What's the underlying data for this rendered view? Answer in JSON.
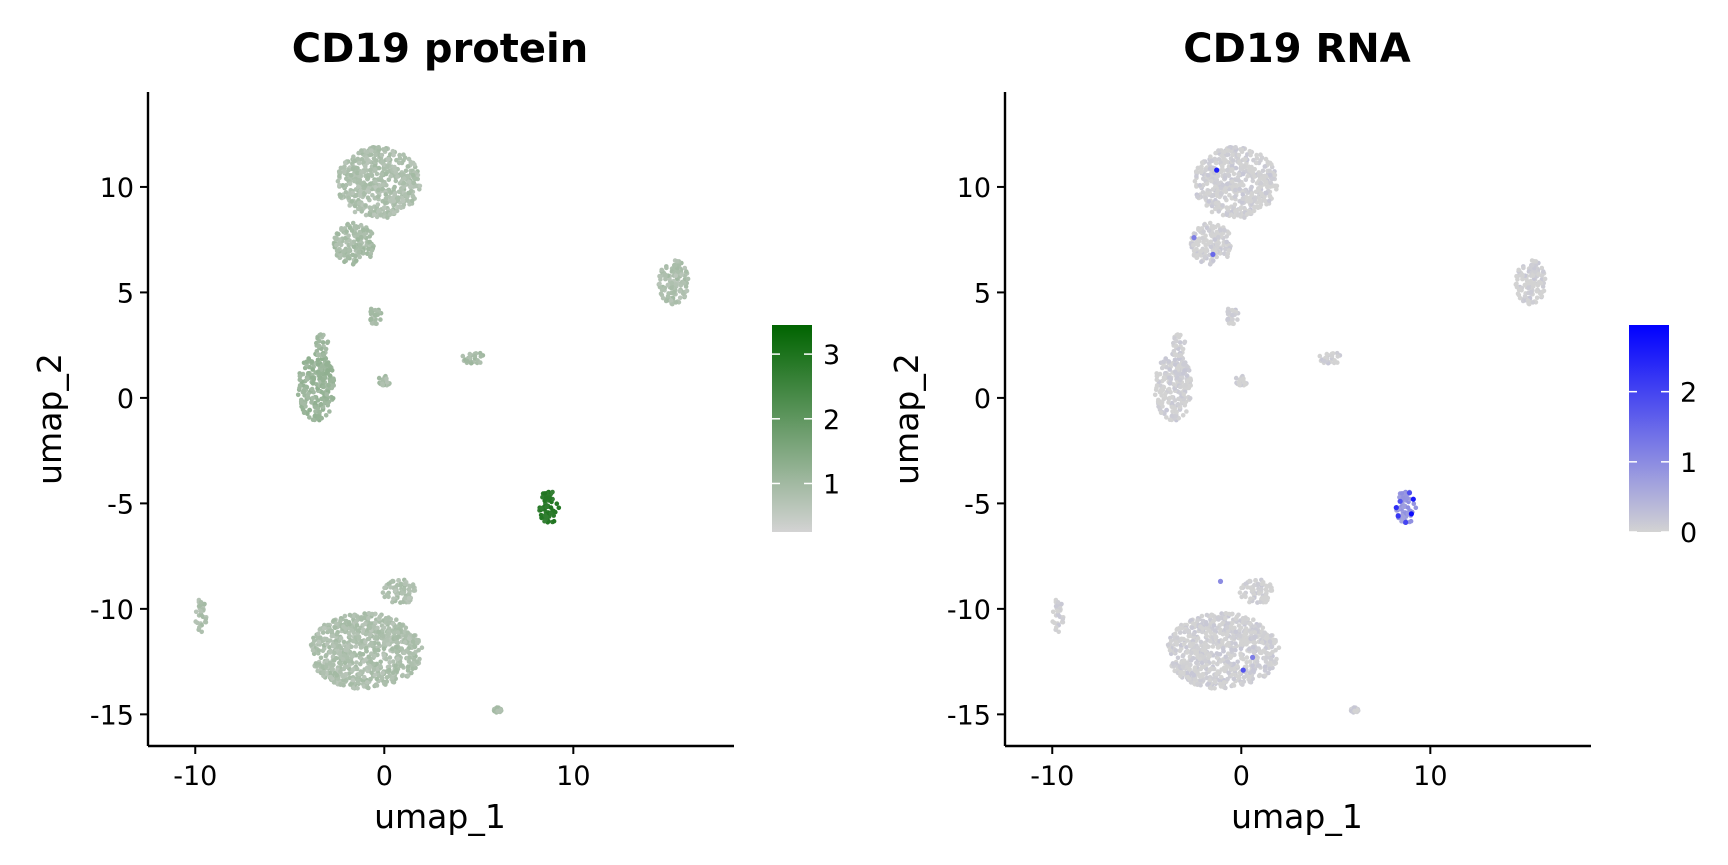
{
  "chart_data": [
    {
      "type": "scatter",
      "title": "CD19 protein",
      "xlabel": "umap_1",
      "ylabel": "umap_2",
      "xlim": [
        -12.5,
        18.5
      ],
      "ylim": [
        -16.5,
        14.5
      ],
      "xticks": [
        -10,
        0,
        10
      ],
      "xtick_labels": [
        "-10",
        "0",
        "10"
      ],
      "yticks": [
        10,
        5,
        0,
        -5,
        -10,
        -15
      ],
      "ytick_labels": [
        "10",
        "5",
        "0",
        "-5",
        "-10",
        "-15"
      ],
      "grid": false,
      "legend": "right",
      "colorbar": {
        "low_color": "#d3d3d3",
        "high_color": "#006400",
        "min": 0.25,
        "max": 3.45,
        "ticks": [
          1,
          2,
          3
        ],
        "tick_labels": [
          "1",
          "2",
          "3"
        ]
      },
      "clusters": [
        {
          "cx": -0.3,
          "cy": 10.2,
          "rx": 2.2,
          "ry": 1.7,
          "value": 0.8
        },
        {
          "cx": -1.6,
          "cy": 7.3,
          "rx": 1.1,
          "ry": 1.0,
          "value": 0.9
        },
        {
          "cx": -0.5,
          "cy": 3.9,
          "rx": 0.35,
          "ry": 0.45,
          "value": 0.9
        },
        {
          "cx": -3.6,
          "cy": 0.5,
          "rx": 1.0,
          "ry": 1.6,
          "value": 1.1
        },
        {
          "cx": -3.3,
          "cy": 2.5,
          "rx": 0.35,
          "ry": 0.6,
          "value": 1.0
        },
        {
          "cx": 0.0,
          "cy": 0.8,
          "rx": 0.35,
          "ry": 0.25,
          "value": 0.9
        },
        {
          "cx": 4.7,
          "cy": 1.9,
          "rx": 0.6,
          "ry": 0.3,
          "value": 0.9
        },
        {
          "cx": 15.3,
          "cy": 5.5,
          "rx": 0.8,
          "ry": 1.1,
          "value": 0.8
        },
        {
          "cx": 8.7,
          "cy": -5.2,
          "rx": 0.55,
          "ry": 0.85,
          "value": 2.8
        },
        {
          "cx": -1.0,
          "cy": -12.0,
          "rx": 3.0,
          "ry": 1.8,
          "value": 0.8
        },
        {
          "cx": 0.8,
          "cy": -9.2,
          "rx": 0.9,
          "ry": 0.6,
          "value": 0.8
        },
        {
          "cx": -9.7,
          "cy": -10.3,
          "rx": 0.3,
          "ry": 0.8,
          "value": 0.8
        },
        {
          "cx": 6.0,
          "cy": -14.8,
          "rx": 0.2,
          "ry": 0.15,
          "value": 0.8
        }
      ]
    },
    {
      "type": "scatter",
      "title": "CD19 RNA",
      "xlabel": "umap_1",
      "ylabel": "umap_2",
      "xlim": [
        -12.5,
        18.5
      ],
      "ylim": [
        -16.5,
        14.5
      ],
      "xticks": [
        -10,
        0,
        10
      ],
      "xtick_labels": [
        "-10",
        "0",
        "10"
      ],
      "yticks": [
        10,
        5,
        0,
        -5,
        -10,
        -15
      ],
      "ytick_labels": [
        "10",
        "5",
        "0",
        "-5",
        "-10",
        "-15"
      ],
      "grid": false,
      "legend": "right",
      "colorbar": {
        "low_color": "#d3d3d3",
        "high_color": "#0000ff",
        "min": 0,
        "max": 2.95,
        "ticks": [
          0,
          1,
          2
        ],
        "tick_labels": [
          "0",
          "1",
          "2"
        ]
      },
      "clusters": [
        {
          "cx": -0.3,
          "cy": 10.2,
          "rx": 2.2,
          "ry": 1.7,
          "value": 0
        },
        {
          "cx": -1.6,
          "cy": 7.3,
          "rx": 1.1,
          "ry": 1.0,
          "value": 0
        },
        {
          "cx": -0.5,
          "cy": 3.9,
          "rx": 0.35,
          "ry": 0.45,
          "value": 0
        },
        {
          "cx": -3.6,
          "cy": 0.5,
          "rx": 1.0,
          "ry": 1.6,
          "value": 0
        },
        {
          "cx": -3.3,
          "cy": 2.5,
          "rx": 0.35,
          "ry": 0.6,
          "value": 0
        },
        {
          "cx": 0.0,
          "cy": 0.8,
          "rx": 0.35,
          "ry": 0.25,
          "value": 0
        },
        {
          "cx": 4.7,
          "cy": 1.9,
          "rx": 0.6,
          "ry": 0.3,
          "value": 0
        },
        {
          "cx": 15.3,
          "cy": 5.5,
          "rx": 0.8,
          "ry": 1.1,
          "value": 0
        },
        {
          "cx": 8.7,
          "cy": -5.2,
          "rx": 0.55,
          "ry": 0.85,
          "value": 0.8
        },
        {
          "cx": -1.0,
          "cy": -12.0,
          "rx": 3.0,
          "ry": 1.8,
          "value": 0
        },
        {
          "cx": 0.8,
          "cy": -9.2,
          "rx": 0.9,
          "ry": 0.6,
          "value": 0
        },
        {
          "cx": -9.7,
          "cy": -10.3,
          "rx": 0.3,
          "ry": 0.8,
          "value": 0
        },
        {
          "cx": 6.0,
          "cy": -14.8,
          "rx": 0.2,
          "ry": 0.15,
          "value": 0
        }
      ],
      "highlight_points": [
        {
          "x": -1.3,
          "y": 10.8,
          "value": 2.5
        },
        {
          "x": -1.5,
          "y": 6.8,
          "value": 1.5
        },
        {
          "x": -2.5,
          "y": 7.6,
          "value": 1.2
        },
        {
          "x": 8.3,
          "y": -5.6,
          "value": 2.2
        },
        {
          "x": 9.1,
          "y": -4.8,
          "value": 2.6
        },
        {
          "x": 8.7,
          "y": -5.9,
          "value": 2.0
        },
        {
          "x": 9.0,
          "y": -5.5,
          "value": 2.8
        },
        {
          "x": 8.4,
          "y": -4.9,
          "value": 1.8
        },
        {
          "x": 8.9,
          "y": -4.5,
          "value": 1.9
        },
        {
          "x": 8.2,
          "y": -5.2,
          "value": 2.3
        },
        {
          "x": 0.1,
          "y": -12.9,
          "value": 1.8
        },
        {
          "x": 0.6,
          "y": -12.3,
          "value": 1.2
        },
        {
          "x": -1.1,
          "y": -8.7,
          "value": 1.0
        }
      ]
    }
  ]
}
